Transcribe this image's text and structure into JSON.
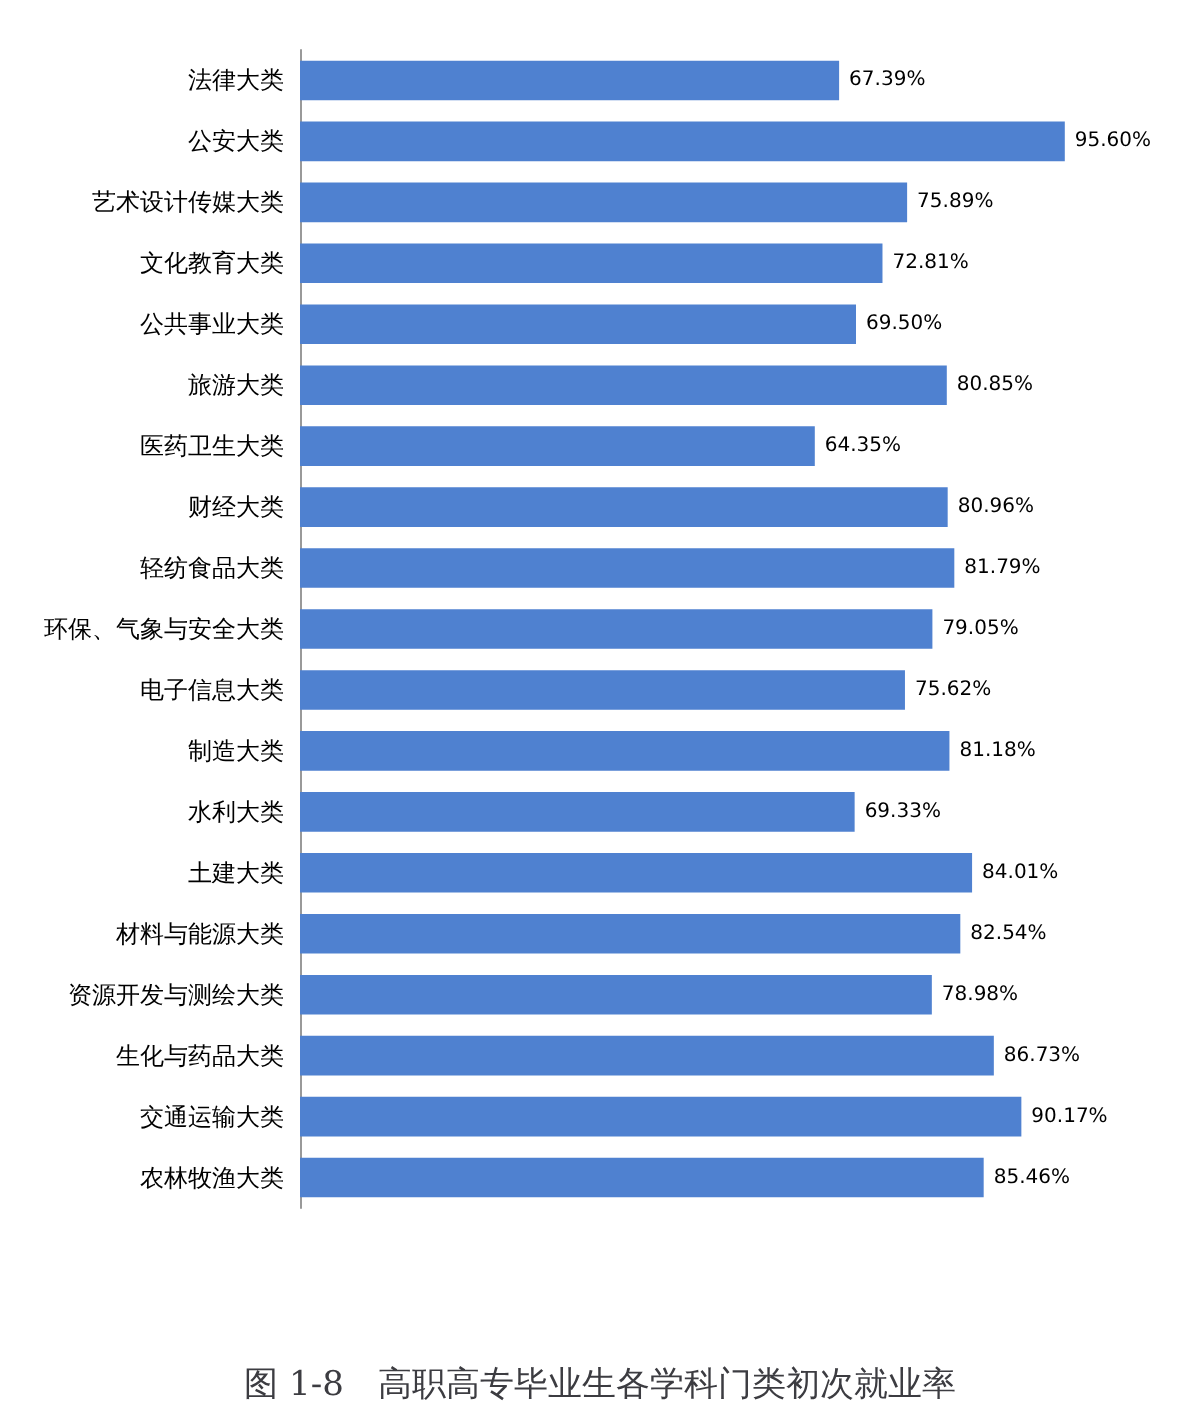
{
  "chart_data": {
    "type": "bar",
    "orientation": "horizontal",
    "title": "图 1-8　高职高专毕业生各学科门类初次就业率",
    "categories": [
      "法律大类",
      "公安大类",
      "艺术设计传媒大类",
      "文化教育大类",
      "公共事业大类",
      "旅游大类",
      "医药卫生大类",
      "财经大类",
      "轻纺食品大类",
      "环保、气象与安全大类",
      "电子信息大类",
      "制造大类",
      "水利大类",
      "土建大类",
      "材料与能源大类",
      "资源开发与测绘大类",
      "生化与药品大类",
      "交通运输大类",
      "农林牧渔大类"
    ],
    "values": [
      67.39,
      95.6,
      75.89,
      72.81,
      69.5,
      80.85,
      64.35,
      80.96,
      81.79,
      79.05,
      75.62,
      81.18,
      69.33,
      84.01,
      82.54,
      78.98,
      86.73,
      90.17,
      85.46
    ],
    "value_labels": [
      "67.39%",
      "95.60%",
      "75.89%",
      "72.81%",
      "69.50%",
      "80.85%",
      "64.35%",
      "80.96%",
      "81.79%",
      "79.05%",
      "75.62%",
      "81.18%",
      "69.33%",
      "84.01%",
      "82.54%",
      "78.98%",
      "86.73%",
      "90.17%",
      "85.46%"
    ],
    "color": "#4f81d0"
  }
}
